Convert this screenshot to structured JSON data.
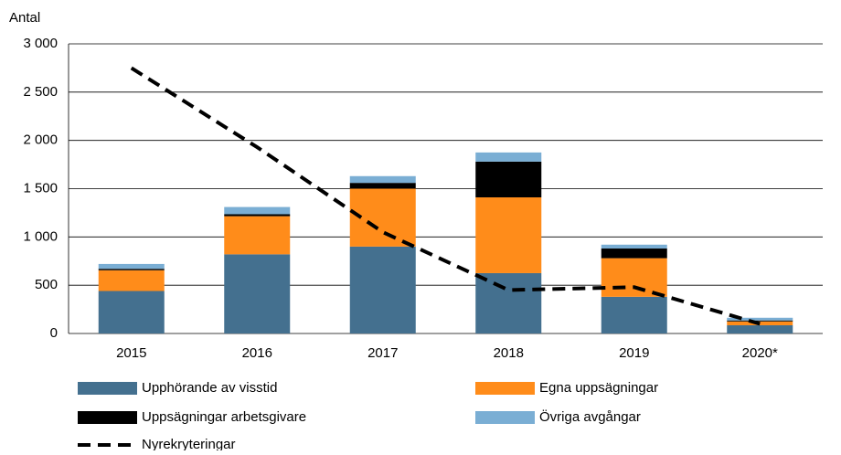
{
  "chart_data": {
    "type": "bar",
    "stacked": true,
    "y_label": "Antal",
    "categories": [
      "2015",
      "2016",
      "2017",
      "2018",
      "2019",
      "2020*"
    ],
    "series": [
      {
        "name": "Upphörande av visstid",
        "color": "#44708f",
        "values": [
          440,
          820,
          900,
          625,
          380,
          85
        ]
      },
      {
        "name": "Egna uppsägningar",
        "color": "#ff8c1a",
        "values": [
          215,
          395,
          600,
          785,
          400,
          40
        ]
      },
      {
        "name": "Uppsägningar arbetsgivare",
        "color": "#000000",
        "values": [
          15,
          20,
          60,
          370,
          100,
          10
        ]
      },
      {
        "name": "Övriga avgångar",
        "color": "#7aaed4",
        "values": [
          50,
          75,
          70,
          95,
          40,
          28
        ]
      },
      {
        "name": "Nyrekryteringar",
        "type": "line",
        "color": "#000000",
        "dashed": true,
        "values": [
          2750,
          1930,
          1050,
          450,
          480,
          100
        ]
      }
    ],
    "ylim": [
      0,
      3000
    ],
    "yticks": [
      0,
      500,
      {
        "value": 1000,
        "label": "1 000"
      },
      {
        "value": 1500,
        "label": "1 500"
      },
      {
        "value": 2000,
        "label": "2 000"
      },
      {
        "value": 2500,
        "label": "2 500"
      },
      {
        "value": 3000,
        "label": "3 000"
      }
    ],
    "grid": true
  }
}
